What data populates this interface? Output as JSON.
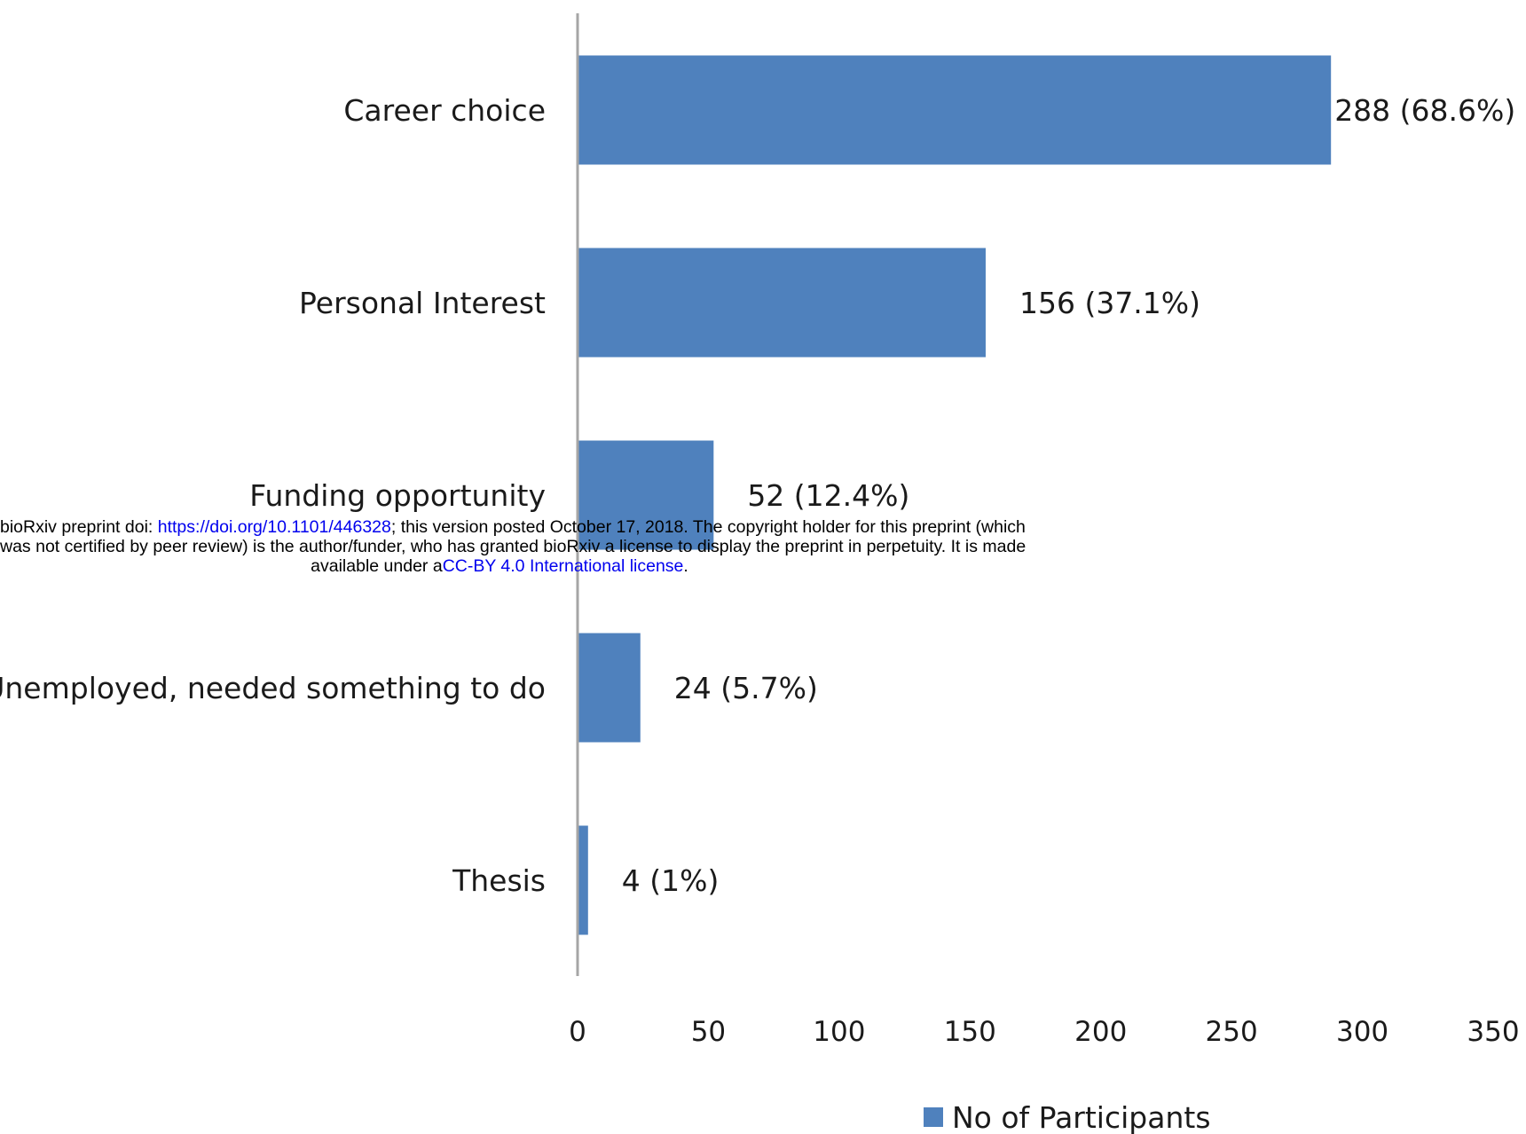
{
  "chart_data": {
    "type": "bar",
    "orientation": "horizontal",
    "categories": [
      "Career choice",
      "Personal Interest",
      "Funding opportunity",
      "Unemployed, needed something to do",
      "Thesis"
    ],
    "series": [
      {
        "name": "No of Participants",
        "values": [
          288,
          156,
          52,
          24,
          4
        ],
        "data_labels": [
          "288 (68.6%)",
          "156 (37.1%)",
          "52 (12.4%)",
          "24 (5.7%)",
          "4 (1%)"
        ]
      }
    ],
    "xlim": [
      0,
      350
    ],
    "xticks": [
      "0",
      "50",
      "100",
      "150",
      "200",
      "250",
      "300",
      "350"
    ],
    "grid": false,
    "legend_position": "bottom",
    "colors": {
      "bar": "#4f81bd",
      "axis": "#a6a6a6"
    }
  },
  "notice": {
    "line1_prefix": "bioRxiv preprint doi: ",
    "doi_link": "https://doi.org/10.1101/446328",
    "line1_suffix": "; this version posted October 17, 2018. The copyright holder for this preprint (which",
    "line2": "was not certified by peer review) is the author/funder, who has granted bioRxiv a license to display the preprint in perpetuity. It is made",
    "line3_prefix": "available under a",
    "license_link": "CC-BY 4.0 International license",
    "line3_suffix": "."
  }
}
